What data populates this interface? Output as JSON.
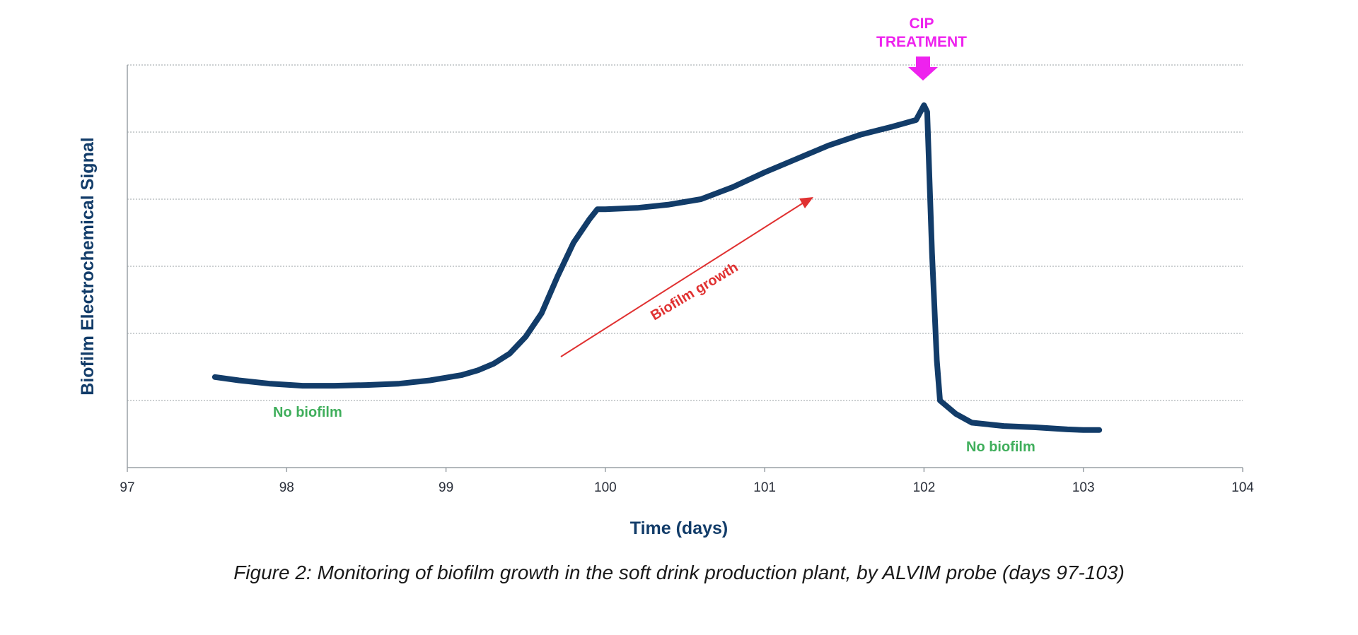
{
  "chart_data": {
    "type": "line",
    "title": "",
    "xlabel": "Time (days)",
    "ylabel": "Biofilm Electrochemical Signal",
    "xlim": [
      97,
      104
    ],
    "ylim": [
      0,
      6
    ],
    "x_ticks": [
      97,
      98,
      99,
      100,
      101,
      102,
      103,
      104
    ],
    "y_grid": [
      1,
      2,
      3,
      4,
      5,
      6
    ],
    "y_tick_labels_shown": false,
    "grid": true,
    "legend": "none",
    "series_color": "#123c69",
    "series": [
      {
        "x": [
          97.55,
          97.7,
          97.9,
          98.1,
          98.3,
          98.5,
          98.7,
          98.9,
          99.1,
          99.2,
          99.3,
          99.4,
          99.5,
          99.6,
          99.7,
          99.8,
          99.9,
          99.95,
          100.0,
          100.2,
          100.4,
          100.6,
          100.8,
          101.0,
          101.2,
          101.4,
          101.6,
          101.8,
          101.95,
          102.0,
          102.02,
          102.05,
          102.08,
          102.1,
          102.2,
          102.3,
          102.5,
          102.7,
          102.9,
          103.0,
          103.1
        ],
        "y": [
          1.35,
          1.3,
          1.25,
          1.22,
          1.22,
          1.23,
          1.25,
          1.3,
          1.38,
          1.45,
          1.55,
          1.7,
          1.95,
          2.3,
          2.85,
          3.35,
          3.7,
          3.85,
          3.85,
          3.87,
          3.92,
          4.0,
          4.18,
          4.4,
          4.6,
          4.8,
          4.96,
          5.08,
          5.18,
          5.4,
          5.3,
          3.2,
          1.6,
          1.0,
          0.8,
          0.67,
          0.62,
          0.6,
          0.57,
          0.56,
          0.56
        ]
      }
    ],
    "annotations": {
      "no_biofilm_left": "No biofilm",
      "no_biofilm_right": "No biofilm",
      "growth": "Biofilm growth",
      "cip_line1": "CIP",
      "cip_line2": "TREATMENT"
    },
    "annotation_colors": {
      "green": "#3fae5b",
      "red": "#e03131",
      "magenta": "#ee22ee"
    }
  },
  "caption": "Figure 2: Monitoring of biofilm growth in the soft drink production plant, by ALVIM probe (days 97-103)"
}
